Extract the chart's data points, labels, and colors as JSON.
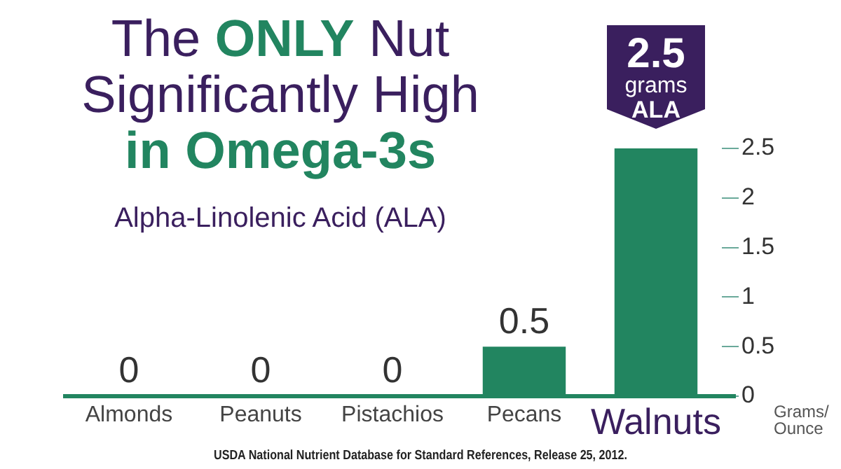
{
  "chart_data": {
    "type": "bar",
    "title": "The ONLY Nut Significantly High in Omega-3s",
    "subtitle": "Alpha-Linolenic Acid (ALA)",
    "ylabel": "Grams/ Ounce",
    "annotations": [
      "USDA National Nutrient Database for Standard References, Release 25, 2012."
    ],
    "categories": [
      "Almonds",
      "Peanuts",
      "Pistachios",
      "Pecans",
      "Walnuts"
    ],
    "values": [
      0,
      0,
      0,
      0.5,
      2.5
    ],
    "color": "#228560",
    "value_labels": [
      "0",
      "0",
      "0",
      "0.5",
      "2.5 grams ALA"
    ],
    "ylim": [
      0,
      2.5
    ],
    "yticks": [
      0,
      0.5,
      1,
      1.5,
      2,
      2.5
    ],
    "grid": false,
    "legend": false
  }
}
